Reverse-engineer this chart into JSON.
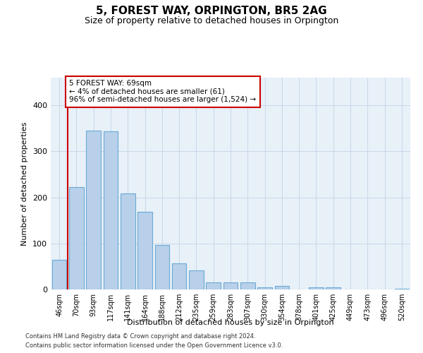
{
  "title": "5, FOREST WAY, ORPINGTON, BR5 2AG",
  "subtitle": "Size of property relative to detached houses in Orpington",
  "xlabel": "Distribution of detached houses by size in Orpington",
  "ylabel": "Number of detached properties",
  "categories": [
    "46sqm",
    "70sqm",
    "93sqm",
    "117sqm",
    "141sqm",
    "164sqm",
    "188sqm",
    "212sqm",
    "235sqm",
    "259sqm",
    "283sqm",
    "307sqm",
    "330sqm",
    "354sqm",
    "378sqm",
    "401sqm",
    "425sqm",
    "449sqm",
    "473sqm",
    "496sqm",
    "520sqm"
  ],
  "values": [
    65,
    222,
    345,
    344,
    208,
    168,
    97,
    57,
    42,
    16,
    16,
    15,
    5,
    8,
    0,
    5,
    5,
    0,
    0,
    0,
    2
  ],
  "bar_color": "#b8d0ea",
  "bar_edge_color": "#6aaad4",
  "vline_x": 0.5,
  "vline_color": "#cc0000",
  "annotation_text": "5 FOREST WAY: 69sqm\n← 4% of detached houses are smaller (61)\n96% of semi-detached houses are larger (1,524) →",
  "annotation_box_color": "#ffffff",
  "annotation_box_edge": "#cc0000",
  "grid_color": "#c8d8e8",
  "plot_bg_color": "#e8f0f8",
  "footer_line1": "Contains HM Land Registry data © Crown copyright and database right 2024.",
  "footer_line2": "Contains public sector information licensed under the Open Government Licence v3.0.",
  "ylim": [
    0,
    460
  ],
  "title_fontsize": 11,
  "subtitle_fontsize": 9,
  "tick_fontsize": 7,
  "ylabel_fontsize": 8,
  "xlabel_fontsize": 8,
  "annotation_fontsize": 7.5
}
